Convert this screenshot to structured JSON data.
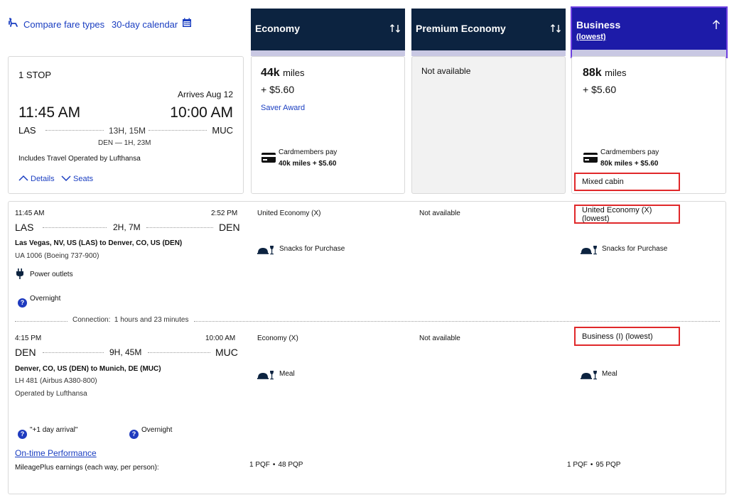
{
  "top_links": {
    "compare": "Compare fare types",
    "calendar": "30-day calendar"
  },
  "columns": {
    "economy": {
      "title": "Economy"
    },
    "premium": {
      "title": "Premium Economy"
    },
    "business": {
      "title": "Business",
      "subtitle": "(lowest)"
    }
  },
  "summary": {
    "stops": "1 STOP",
    "arrives": "Arrives Aug 12",
    "depart_time": "11:45 AM",
    "arrive_time": "10:00 AM",
    "origin": "LAS",
    "destination": "MUC",
    "duration": "13H, 15M",
    "layover": "DEN — 1H, 23M",
    "operated": "Includes Travel Operated by Lufthansa",
    "details": "Details",
    "seats": "Seats"
  },
  "fares": {
    "economy": {
      "miles_num": "44k",
      "miles_unit": "miles",
      "cash": "+ $5.60",
      "award": "Saver Award",
      "cm_label": "Cardmembers pay",
      "cm_price": "40k miles + $5.60"
    },
    "premium": {
      "na": "Not available"
    },
    "business": {
      "miles_num": "88k",
      "miles_unit": "miles",
      "cash": "+ $5.60",
      "cm_label": "Cardmembers pay",
      "cm_price": "80k miles + $5.60",
      "mixed": "Mixed cabin"
    }
  },
  "segment1": {
    "dep_time": "11:45 AM",
    "arr_time": "2:52 PM",
    "from": "LAS",
    "to": "DEN",
    "duration": "2H, 7M",
    "route": "Las Vegas, NV, US (LAS) to Denver, CO, US (DEN)",
    "flight": "UA 1006 (Boeing 737-900)",
    "amenity": "Power outlets",
    "overnight": "Overnight",
    "economy_cabin": "United Economy (X)",
    "premium_cabin": "Not available",
    "business_cabin": "United Economy (X) (lowest)",
    "economy_meal": "Snacks for Purchase",
    "business_meal": "Snacks for Purchase"
  },
  "connection": "Connection:  1 hours and 23 minutes",
  "segment2": {
    "dep_time": "4:15 PM",
    "arr_time": "10:00 AM",
    "from": "DEN",
    "to": "MUC",
    "duration": "9H, 45M",
    "route": "Denver, CO, US (DEN) to Munich, DE (MUC)",
    "flight": "LH 481 (Airbus A380-800)",
    "operated": "Operated by Lufthansa",
    "economy_cabin": "Economy (X)",
    "premium_cabin": "Not available",
    "business_cabin": "Business (I) (lowest)",
    "economy_meal": "Meal",
    "business_meal": "Meal",
    "arrival_note": "\"+1 day arrival\"",
    "overnight": "Overnight"
  },
  "footer": {
    "ontime": "On-time Performance",
    "earnings_label": "MileagePlus earnings (each way, per person):",
    "economy_pqf": "1 PQF",
    "economy_pqp": "48 PQP",
    "business_pqf": "1 PQF",
    "business_pqp": "95 PQP"
  },
  "colors": {
    "navy": "#0c2340",
    "business_header": "#1d1ba8",
    "link": "#1a3ec1",
    "highlight_border": "#e0282a",
    "strip": "#c9c8e3"
  }
}
